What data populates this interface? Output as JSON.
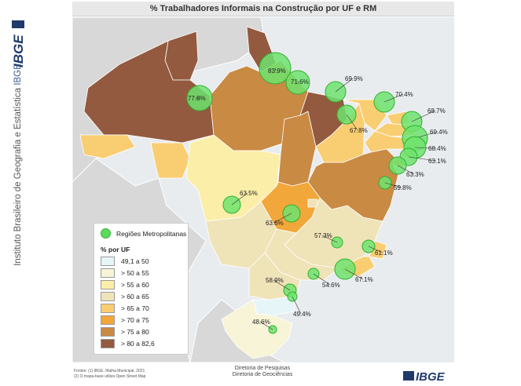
{
  "title": "% Trabalhadores Informais na Construção por UF e RM",
  "sidebar": {
    "logo_text": "IBGE",
    "institute_name": "Instituto Brasileiro de Geografia e Estatística",
    "institute_abbr": "IBGE"
  },
  "legend": {
    "rm_label": "Regiões Metropolitanas",
    "uf_title": "% por UF",
    "classes": [
      {
        "label": "49,1 a 50",
        "color": "#e6f5f8"
      },
      {
        "label": "> 50 a 55",
        "color": "#f7f4d7"
      },
      {
        "label": "> 55 a 60",
        "color": "#fbeea9"
      },
      {
        "label": "> 60 a 65",
        "color": "#efe3b8"
      },
      {
        "label": "> 65 a 70",
        "color": "#f9cd72"
      },
      {
        "label": "> 70 a 75",
        "color": "#f2a73a"
      },
      {
        "label": "> 75 a 80",
        "color": "#c98a44"
      },
      {
        "label": "> 80 a 82,6",
        "color": "#935a3f"
      }
    ]
  },
  "map": {
    "colors": {
      "ocean": "#e9ecef",
      "neighbors": "#d8d8d8",
      "rm_fill": "#6fe36f",
      "rm_stroke": "#2fb12f",
      "border": "#ffffff"
    },
    "regions": [
      {
        "name": "AM",
        "class": 7
      },
      {
        "name": "PA",
        "class": 6
      },
      {
        "name": "RR",
        "class": 7
      },
      {
        "name": "AP",
        "class": 7
      },
      {
        "name": "AC",
        "class": 4
      },
      {
        "name": "RO",
        "class": 4
      },
      {
        "name": "MA",
        "class": 7
      },
      {
        "name": "PI",
        "class": 4
      },
      {
        "name": "CE",
        "class": 4
      },
      {
        "name": "RN",
        "class": 4
      },
      {
        "name": "PB",
        "class": 4
      },
      {
        "name": "PE",
        "class": 4
      },
      {
        "name": "AL",
        "class": 4
      },
      {
        "name": "SE",
        "class": 5
      },
      {
        "name": "BA",
        "class": 6
      },
      {
        "name": "TO",
        "class": 6
      },
      {
        "name": "MT",
        "class": 2
      },
      {
        "name": "GO",
        "class": 5
      },
      {
        "name": "DF",
        "class": 3
      },
      {
        "name": "MS",
        "class": 3
      },
      {
        "name": "MG",
        "class": 3
      },
      {
        "name": "ES",
        "class": 4
      },
      {
        "name": "RJ",
        "class": 4
      },
      {
        "name": "SP",
        "class": 3
      },
      {
        "name": "PR",
        "class": 3
      },
      {
        "name": "SC",
        "class": 0
      },
      {
        "name": "RS",
        "class": 1
      }
    ],
    "rms": [
      {
        "name": "Manaus",
        "value": "77.8%"
      },
      {
        "name": "Belém",
        "value": "83.9%"
      },
      {
        "name": "Macapá",
        "value": "71.6%"
      },
      {
        "name": "São Luís",
        "value": "69.9%"
      },
      {
        "name": "Teresina",
        "value": "67.8%"
      },
      {
        "name": "Fortaleza",
        "value": "70.4%"
      },
      {
        "name": "Natal",
        "value": "68.7%"
      },
      {
        "name": "João Pessoa",
        "value": "69.4%"
      },
      {
        "name": "Recife",
        "value": "68.4%"
      },
      {
        "name": "Maceió",
        "value": "63.1%"
      },
      {
        "name": "Aracaju",
        "value": "63.3%"
      },
      {
        "name": "Salvador",
        "value": "59.8%"
      },
      {
        "name": "Cuiabá",
        "value": "63.5%"
      },
      {
        "name": "Goiânia",
        "value": "63.6%"
      },
      {
        "name": "Belo Horizonte",
        "value": "57.3%"
      },
      {
        "name": "Vitória",
        "value": "61.1%"
      },
      {
        "name": "Rio de Janeiro",
        "value": "67.1%"
      },
      {
        "name": "São Paulo",
        "value": "54.6%"
      },
      {
        "name": "Curitiba",
        "value": "58.9%"
      },
      {
        "name": "Florianópolis",
        "value": "49.4%"
      },
      {
        "name": "Porto Alegre",
        "value": "48.6%"
      }
    ]
  },
  "footer": {
    "sources_line1": "Fontes: (1) IBGE. Malha Municipal, 2021",
    "sources_line2": "(2) O mapa-base utiliza Open Street Map",
    "dept1": "Diretoria de Pesquisas",
    "dept2": "Diretoria de Geociências"
  }
}
